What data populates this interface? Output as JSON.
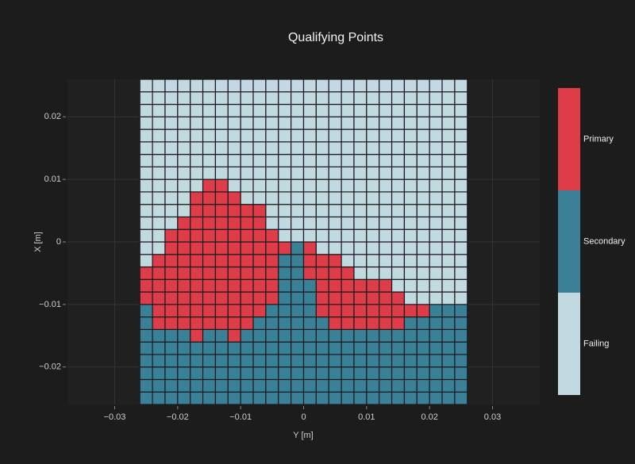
{
  "chart_data": {
    "type": "heatmap",
    "title": "Qualifying Points",
    "xlabel": "Y [m]",
    "ylabel": "X [m]",
    "x": [
      -0.025,
      -0.023,
      -0.021,
      -0.019,
      -0.017,
      -0.015,
      -0.013,
      -0.011,
      -0.009,
      -0.007,
      -0.005,
      -0.003,
      -0.001,
      0.001,
      0.003,
      0.005,
      0.007,
      0.009,
      0.011,
      0.013,
      0.015,
      0.017,
      0.019,
      0.021,
      0.023,
      0.025
    ],
    "y": [
      -0.025,
      -0.023,
      -0.021,
      -0.019,
      -0.017,
      -0.015,
      -0.013,
      -0.011,
      -0.009,
      -0.007,
      -0.005,
      -0.003,
      -0.001,
      0.001,
      0.003,
      0.005,
      0.007,
      0.009,
      0.011,
      0.013,
      0.015,
      0.017,
      0.019,
      0.021,
      0.023,
      0.025
    ],
    "z": [
      [
        1,
        1,
        1,
        1,
        1,
        1,
        1,
        1,
        1,
        1,
        1,
        1,
        1,
        1,
        1,
        1,
        1,
        1,
        1,
        1,
        1,
        1,
        1,
        1,
        1,
        1
      ],
      [
        1,
        1,
        1,
        1,
        1,
        1,
        1,
        1,
        1,
        1,
        1,
        1,
        1,
        1,
        1,
        1,
        1,
        1,
        1,
        1,
        1,
        1,
        1,
        1,
        1,
        1
      ],
      [
        1,
        1,
        1,
        1,
        1,
        1,
        1,
        1,
        1,
        1,
        1,
        1,
        1,
        1,
        1,
        1,
        1,
        1,
        1,
        1,
        1,
        1,
        1,
        1,
        1,
        1
      ],
      [
        1,
        1,
        1,
        1,
        1,
        1,
        1,
        1,
        1,
        1,
        1,
        1,
        1,
        1,
        1,
        1,
        1,
        1,
        1,
        1,
        1,
        1,
        1,
        1,
        1,
        1
      ],
      [
        1,
        1,
        1,
        1,
        1,
        1,
        1,
        1,
        1,
        1,
        1,
        1,
        1,
        1,
        1,
        1,
        1,
        1,
        1,
        1,
        1,
        1,
        1,
        1,
        1,
        1
      ],
      [
        1,
        1,
        1,
        1,
        2,
        1,
        1,
        2,
        1,
        1,
        1,
        1,
        1,
        1,
        1,
        1,
        1,
        1,
        1,
        1,
        1,
        1,
        1,
        1,
        1,
        1
      ],
      [
        1,
        2,
        2,
        2,
        2,
        2,
        2,
        2,
        2,
        1,
        1,
        1,
        1,
        1,
        1,
        2,
        2,
        2,
        2,
        2,
        2,
        1,
        1,
        1,
        1,
        1
      ],
      [
        1,
        2,
        2,
        2,
        2,
        2,
        2,
        2,
        2,
        2,
        1,
        1,
        1,
        1,
        2,
        2,
        2,
        2,
        2,
        2,
        2,
        2,
        2,
        1,
        1,
        1
      ],
      [
        2,
        2,
        2,
        2,
        2,
        2,
        2,
        2,
        2,
        2,
        2,
        1,
        1,
        1,
        2,
        2,
        2,
        2,
        2,
        2,
        2,
        0,
        0,
        0,
        0,
        0
      ],
      [
        2,
        2,
        2,
        2,
        2,
        2,
        2,
        2,
        2,
        2,
        2,
        1,
        1,
        1,
        2,
        2,
        2,
        2,
        2,
        2,
        0,
        0,
        0,
        0,
        0,
        0
      ],
      [
        2,
        2,
        2,
        2,
        2,
        2,
        2,
        2,
        2,
        2,
        2,
        1,
        1,
        2,
        2,
        2,
        2,
        0,
        0,
        0,
        0,
        0,
        0,
        0,
        0,
        0
      ],
      [
        0,
        2,
        2,
        2,
        2,
        2,
        2,
        2,
        2,
        2,
        2,
        1,
        1,
        2,
        2,
        2,
        0,
        0,
        0,
        0,
        0,
        0,
        0,
        0,
        0,
        0
      ],
      [
        0,
        0,
        2,
        2,
        2,
        2,
        2,
        2,
        2,
        2,
        2,
        2,
        1,
        2,
        0,
        0,
        0,
        0,
        0,
        0,
        0,
        0,
        0,
        0,
        0,
        0
      ],
      [
        0,
        0,
        2,
        2,
        2,
        2,
        2,
        2,
        2,
        2,
        2,
        0,
        0,
        0,
        0,
        0,
        0,
        0,
        0,
        0,
        0,
        0,
        0,
        0,
        0,
        0
      ],
      [
        0,
        0,
        0,
        2,
        2,
        2,
        2,
        2,
        2,
        2,
        0,
        0,
        0,
        0,
        0,
        0,
        0,
        0,
        0,
        0,
        0,
        0,
        0,
        0,
        0,
        0
      ],
      [
        0,
        0,
        0,
        0,
        2,
        2,
        2,
        2,
        2,
        2,
        0,
        0,
        0,
        0,
        0,
        0,
        0,
        0,
        0,
        0,
        0,
        0,
        0,
        0,
        0,
        0
      ],
      [
        0,
        0,
        0,
        0,
        2,
        2,
        2,
        2,
        0,
        0,
        0,
        0,
        0,
        0,
        0,
        0,
        0,
        0,
        0,
        0,
        0,
        0,
        0,
        0,
        0,
        0
      ],
      [
        0,
        0,
        0,
        0,
        0,
        2,
        2,
        0,
        0,
        0,
        0,
        0,
        0,
        0,
        0,
        0,
        0,
        0,
        0,
        0,
        0,
        0,
        0,
        0,
        0,
        0
      ],
      [
        0,
        0,
        0,
        0,
        0,
        0,
        0,
        0,
        0,
        0,
        0,
        0,
        0,
        0,
        0,
        0,
        0,
        0,
        0,
        0,
        0,
        0,
        0,
        0,
        0,
        0
      ],
      [
        0,
        0,
        0,
        0,
        0,
        0,
        0,
        0,
        0,
        0,
        0,
        0,
        0,
        0,
        0,
        0,
        0,
        0,
        0,
        0,
        0,
        0,
        0,
        0,
        0,
        0
      ],
      [
        0,
        0,
        0,
        0,
        0,
        0,
        0,
        0,
        0,
        0,
        0,
        0,
        0,
        0,
        0,
        0,
        0,
        0,
        0,
        0,
        0,
        0,
        0,
        0,
        0,
        0
      ],
      [
        0,
        0,
        0,
        0,
        0,
        0,
        0,
        0,
        0,
        0,
        0,
        0,
        0,
        0,
        0,
        0,
        0,
        0,
        0,
        0,
        0,
        0,
        0,
        0,
        0,
        0
      ],
      [
        0,
        0,
        0,
        0,
        0,
        0,
        0,
        0,
        0,
        0,
        0,
        0,
        0,
        0,
        0,
        0,
        0,
        0,
        0,
        0,
        0,
        0,
        0,
        0,
        0,
        0
      ],
      [
        0,
        0,
        0,
        0,
        0,
        0,
        0,
        0,
        0,
        0,
        0,
        0,
        0,
        0,
        0,
        0,
        0,
        0,
        0,
        0,
        0,
        0,
        0,
        0,
        0,
        0
      ],
      [
        0,
        0,
        0,
        0,
        0,
        0,
        0,
        0,
        0,
        0,
        0,
        0,
        0,
        0,
        0,
        0,
        0,
        0,
        0,
        0,
        0,
        0,
        0,
        0,
        0,
        0
      ],
      [
        0,
        0,
        0,
        0,
        0,
        0,
        0,
        0,
        0,
        0,
        0,
        0,
        0,
        0,
        0,
        0,
        0,
        0,
        0,
        0,
        0,
        0,
        0,
        0,
        0,
        0
      ]
    ],
    "classes": [
      "Failing",
      "Secondary",
      "Primary"
    ],
    "colors": [
      "#c2d9e1",
      "#3a8198",
      "#de3c49"
    ],
    "xlim": [
      -0.0375,
      0.0375
    ],
    "ylim": [
      -0.026,
      0.026
    ],
    "xticks": [
      {
        "value": -0.03,
        "label": "−0.03"
      },
      {
        "value": -0.02,
        "label": "−0.02"
      },
      {
        "value": -0.01,
        "label": "−0.01"
      },
      0,
      0.01,
      0.02,
      0.03
    ],
    "yticks": [
      {
        "value": -0.02,
        "label": "−0.02"
      },
      {
        "value": -0.01,
        "label": "−0.01"
      },
      0,
      0.01,
      0.02
    ],
    "grid": true
  }
}
